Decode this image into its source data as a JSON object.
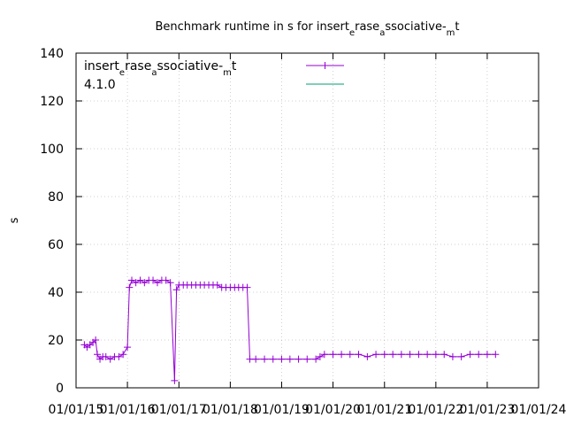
{
  "chart_data": {
    "type": "line",
    "title": {
      "parts": [
        {
          "text": "Benchmark runtime in s for insert"
        },
        {
          "text": "e",
          "sub": true
        },
        {
          "text": "rase"
        },
        {
          "text": "a",
          "sub": true
        },
        {
          "text": "ssociative-"
        },
        {
          "text": "m",
          "sub": true
        },
        {
          "text": "t"
        }
      ]
    },
    "ylabel": "s",
    "ylim": [
      0,
      140
    ],
    "yticks": [
      "0",
      "20",
      "40",
      "60",
      "80",
      "100",
      "120",
      "140"
    ],
    "xticks": [
      "01/01/15",
      "01/01/16",
      "01/01/17",
      "01/01/18",
      "01/01/19",
      "01/01/20",
      "01/01/21",
      "01/01/22",
      "01/01/23",
      "01/01/24"
    ],
    "xlim": [
      "2015-01-01",
      "2024-01-01"
    ],
    "legend_position": "top-left",
    "series": [
      {
        "name": {
          "parts": [
            {
              "text": "insert"
            },
            {
              "text": "e",
              "sub": true
            },
            {
              "text": "rase"
            },
            {
              "text": "a",
              "sub": true
            },
            {
              "text": "ssociative-"
            },
            {
              "text": "m",
              "sub": true
            },
            {
              "text": "t"
            }
          ]
        },
        "color": "#9400d3",
        "marker": "plus",
        "points": [
          [
            "2015-03-01",
            18
          ],
          [
            "2015-03-20",
            17
          ],
          [
            "2015-04-10",
            18
          ],
          [
            "2015-05-01",
            19
          ],
          [
            "2015-05-20",
            20
          ],
          [
            "2015-06-01",
            14
          ],
          [
            "2015-06-20",
            12
          ],
          [
            "2015-07-10",
            13
          ],
          [
            "2015-08-01",
            13
          ],
          [
            "2015-09-01",
            12
          ],
          [
            "2015-10-01",
            13
          ],
          [
            "2015-11-01",
            13
          ],
          [
            "2015-12-01",
            14
          ],
          [
            "2016-01-01",
            17
          ],
          [
            "2016-01-15",
            42
          ],
          [
            "2016-02-01",
            45
          ],
          [
            "2016-03-01",
            44
          ],
          [
            "2016-04-01",
            45
          ],
          [
            "2016-05-01",
            44
          ],
          [
            "2016-06-01",
            45
          ],
          [
            "2016-07-01",
            45
          ],
          [
            "2016-08-01",
            44
          ],
          [
            "2016-09-01",
            45
          ],
          [
            "2016-10-01",
            45
          ],
          [
            "2016-11-01",
            44
          ],
          [
            "2016-12-01",
            3
          ],
          [
            "2016-12-15",
            41
          ],
          [
            "2017-01-01",
            43
          ],
          [
            "2017-02-01",
            43
          ],
          [
            "2017-03-01",
            43
          ],
          [
            "2017-04-01",
            43
          ],
          [
            "2017-05-01",
            43
          ],
          [
            "2017-06-01",
            43
          ],
          [
            "2017-07-01",
            43
          ],
          [
            "2017-08-01",
            43
          ],
          [
            "2017-09-01",
            43
          ],
          [
            "2017-10-01",
            43
          ],
          [
            "2017-11-01",
            42
          ],
          [
            "2017-12-01",
            42
          ],
          [
            "2018-01-01",
            42
          ],
          [
            "2018-02-01",
            42
          ],
          [
            "2018-03-01",
            42
          ],
          [
            "2018-04-01",
            42
          ],
          [
            "2018-05-01",
            42
          ],
          [
            "2018-05-20",
            12
          ],
          [
            "2018-07-01",
            12
          ],
          [
            "2018-09-01",
            12
          ],
          [
            "2018-11-01",
            12
          ],
          [
            "2019-01-01",
            12
          ],
          [
            "2019-03-01",
            12
          ],
          [
            "2019-05-01",
            12
          ],
          [
            "2019-07-01",
            12
          ],
          [
            "2019-09-01",
            12
          ],
          [
            "2019-10-01",
            13
          ],
          [
            "2019-11-01",
            14
          ],
          [
            "2020-01-01",
            14
          ],
          [
            "2020-03-01",
            14
          ],
          [
            "2020-05-01",
            14
          ],
          [
            "2020-07-01",
            14
          ],
          [
            "2020-09-01",
            13
          ],
          [
            "2020-11-01",
            14
          ],
          [
            "2021-01-01",
            14
          ],
          [
            "2021-03-01",
            14
          ],
          [
            "2021-05-01",
            14
          ],
          [
            "2021-07-01",
            14
          ],
          [
            "2021-09-01",
            14
          ],
          [
            "2021-11-01",
            14
          ],
          [
            "2022-01-01",
            14
          ],
          [
            "2022-03-01",
            14
          ],
          [
            "2022-05-01",
            13
          ],
          [
            "2022-07-01",
            13
          ],
          [
            "2022-09-01",
            14
          ],
          [
            "2022-11-01",
            14
          ],
          [
            "2023-01-01",
            14
          ],
          [
            "2023-03-01",
            14
          ]
        ]
      },
      {
        "name": {
          "parts": [
            {
              "text": "4.1.0"
            }
          ]
        },
        "color": "#009e73",
        "marker": "none",
        "points": []
      }
    ]
  }
}
